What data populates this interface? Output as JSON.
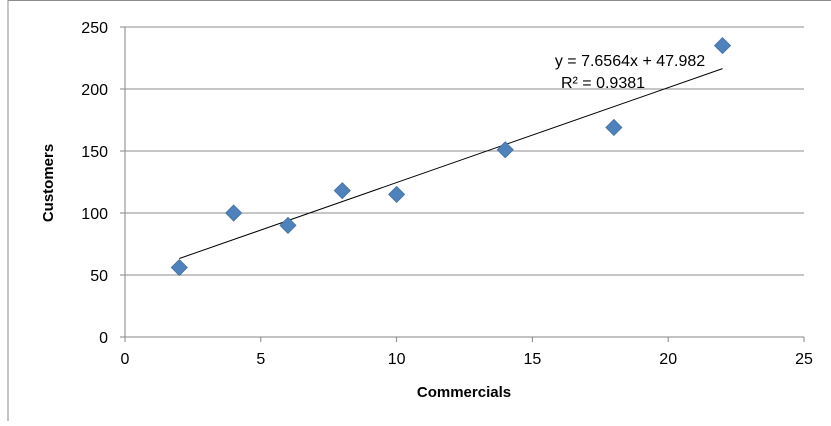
{
  "chart_data": {
    "type": "scatter",
    "title": "",
    "xlabel": "Commercials",
    "ylabel": "Customers",
    "xlim": [
      0,
      25
    ],
    "ylim": [
      0,
      250
    ],
    "x_ticks": [
      0,
      5,
      10,
      15,
      20,
      25
    ],
    "y_ticks": [
      0,
      50,
      100,
      150,
      200,
      250
    ],
    "x_tick_labels": [
      "0",
      "5",
      "10",
      "15",
      "20",
      "25"
    ],
    "y_tick_labels": [
      "0",
      "50",
      "100",
      "150",
      "200",
      "250"
    ],
    "grid": "horizontal",
    "series": [
      {
        "x": [
          2,
          4,
          6,
          8,
          10,
          14,
          18,
          22
        ],
        "y": [
          56,
          100,
          90,
          118,
          115,
          151,
          169,
          235
        ],
        "color": "#4f81bd",
        "marker": "diamond"
      }
    ],
    "trendline": {
      "type": "linear",
      "slope": 7.6564,
      "intercept": 47.982,
      "x_range": [
        2,
        22
      ],
      "color": "#000000",
      "equation_label": "y = 7.6564x + 47.982",
      "r2_label": "R² = 0.9381"
    }
  }
}
